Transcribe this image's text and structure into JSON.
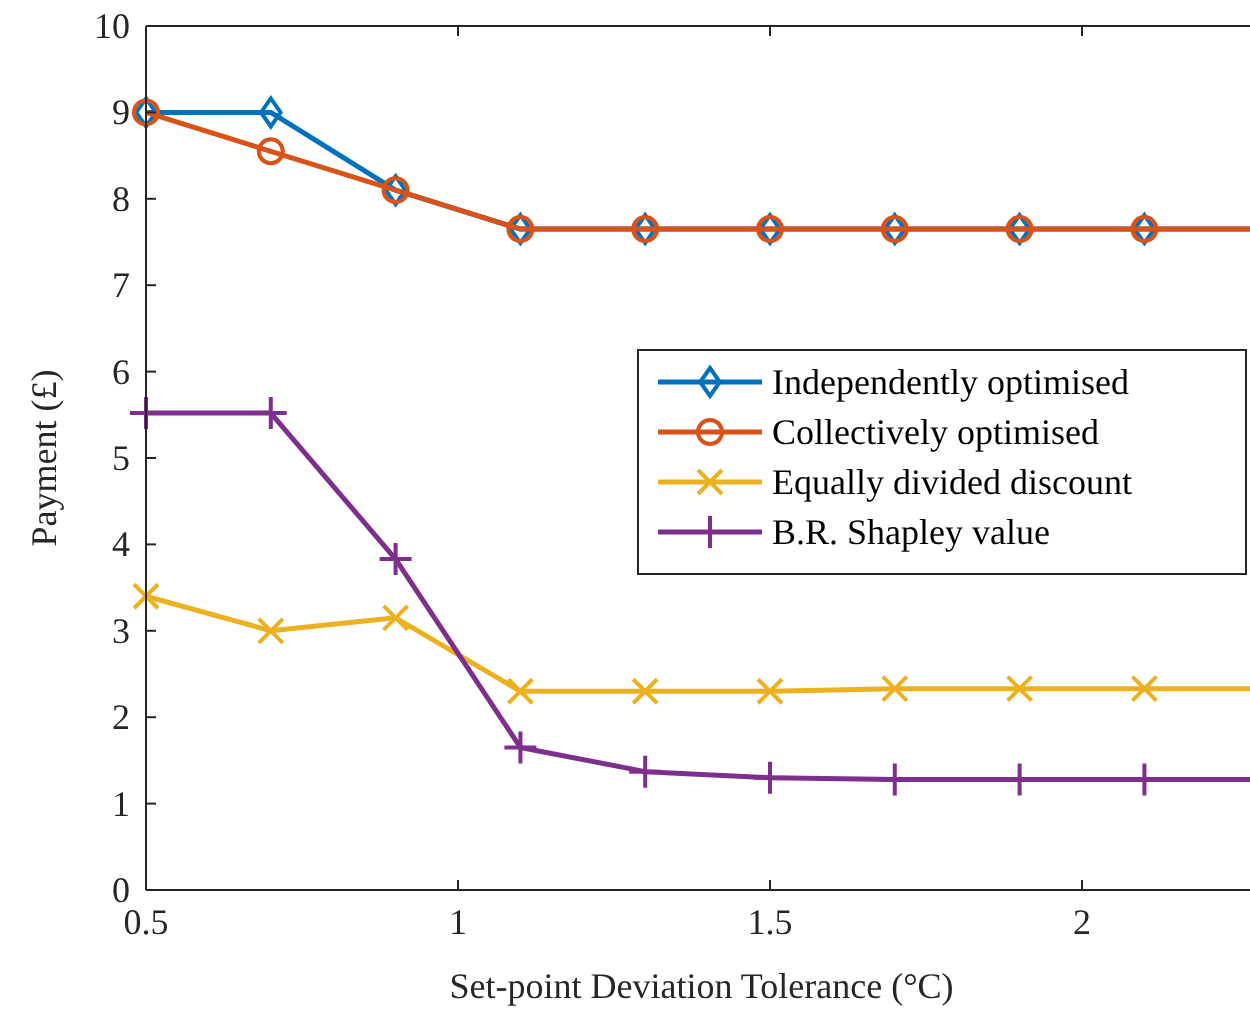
{
  "chart_data": {
    "type": "line",
    "xlabel": "Set-point Deviation Tolerance (°C)",
    "ylabel": "Payment (£)",
    "x": [
      0.5,
      0.7,
      0.9,
      1.1,
      1.3,
      1.5,
      1.7,
      1.9,
      2.1,
      2.3
    ],
    "xlim": [
      0.5,
      2.3
    ],
    "xticks": [
      0.5,
      1,
      1.5,
      2
    ],
    "ylim": [
      0,
      10
    ],
    "yticks": [
      0,
      1,
      2,
      3,
      4,
      5,
      6,
      7,
      8,
      9,
      10
    ],
    "grid": false,
    "legend": "right",
    "series": [
      {
        "name": "Independently optimised",
        "color": "#0072bd",
        "marker": "diamond",
        "values": [
          9,
          9,
          8.1,
          7.65,
          7.65,
          7.65,
          7.65,
          7.65,
          7.65,
          7.65
        ]
      },
      {
        "name": "Collectively optimised",
        "color": "#d95319",
        "marker": "circle",
        "values": [
          9,
          8.55,
          8.1,
          7.65,
          7.65,
          7.65,
          7.65,
          7.65,
          7.65,
          7.65
        ]
      },
      {
        "name": "Equally divided discount",
        "color": "#edb120",
        "marker": "cross",
        "values": [
          3.4,
          3.0,
          3.15,
          2.3,
          2.3,
          2.3,
          2.33,
          2.33,
          2.33,
          2.33
        ]
      },
      {
        "name": "B.R. Shapley value",
        "color": "#7e2f8e",
        "marker": "plus",
        "values": [
          5.52,
          5.52,
          3.83,
          1.65,
          1.37,
          1.3,
          1.28,
          1.28,
          1.28,
          1.28
        ]
      }
    ]
  }
}
